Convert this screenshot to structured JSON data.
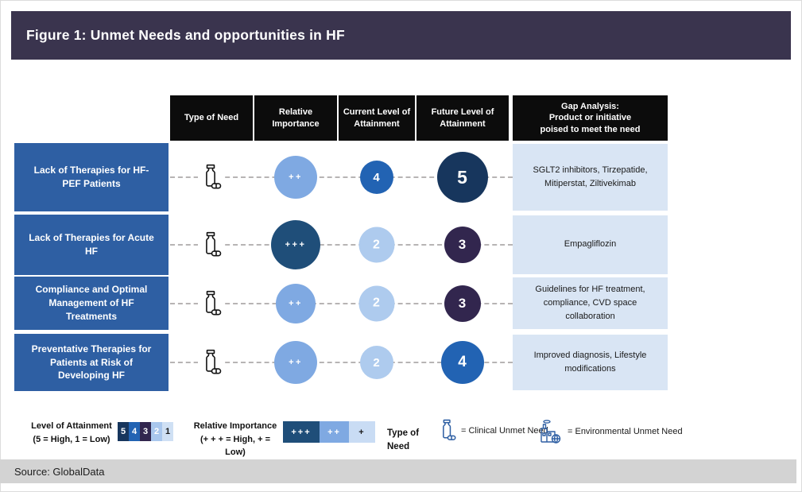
{
  "title_bar": {
    "text": "Figure 1: Unmet Needs and opportunities in HF",
    "bg": "#3a344e",
    "fg": "#ffffff"
  },
  "colors": {
    "header_bg": "#0c0c0c",
    "row_label_bg": "#2e5fa3",
    "gap_cell_bg": "#d9e5f4",
    "dashed_line": "#b7b4b4",
    "source_bar_bg": "#d3d3d3",
    "legend_icon_blue": "#2e5fa3"
  },
  "table": {
    "headers": {
      "type": "Type of Need",
      "importance": "Relative\nImportance",
      "current": "Current Level of\nAttainment",
      "future": "Future Level of\nAttainment",
      "gap": "Gap Analysis:\nProduct or initiative\npoised to meet the need"
    },
    "rows": [
      {
        "label": "Lack of Therapies for HF-PEF Patients",
        "need_type": "clinical",
        "importance": {
          "text": "++",
          "color": "#7fa9e2",
          "fg": "#ffffff",
          "size": 54
        },
        "current": {
          "text": "4",
          "color": "#2263b3",
          "fg": "#ffffff",
          "size": 42
        },
        "future": {
          "text": "5",
          "color": "#17365d",
          "fg": "#ffffff",
          "size": 64
        },
        "gap": "SGLT2 inhibitors, Tirzepatide, Mitiperstat, Ziltivekimab"
      },
      {
        "label": "Lack of Therapies for Acute HF",
        "need_type": "clinical",
        "importance": {
          "text": "+++",
          "color": "#1f4e79",
          "fg": "#ffffff",
          "size": 62
        },
        "current": {
          "text": "2",
          "color": "#aecbee",
          "fg": "#ffffff",
          "size": 45
        },
        "future": {
          "text": "3",
          "color": "#32264e",
          "fg": "#ffffff",
          "size": 46
        },
        "gap": "Empagliflozin"
      },
      {
        "label": "Compliance and Optimal Management of HF Treatments",
        "need_type": "clinical",
        "importance": {
          "text": "++",
          "color": "#7fa9e2",
          "fg": "#ffffff",
          "size": 50
        },
        "current": {
          "text": "2",
          "color": "#aecbee",
          "fg": "#ffffff",
          "size": 45
        },
        "future": {
          "text": "3",
          "color": "#32264e",
          "fg": "#ffffff",
          "size": 46
        },
        "gap": "Guidelines for HF treatment, compliance, CVD space collaboration"
      },
      {
        "label": "Preventative Therapies for Patients at Risk of Developing HF",
        "need_type": "clinical",
        "importance": {
          "text": "++",
          "color": "#7fa9e2",
          "fg": "#ffffff",
          "size": 54
        },
        "current": {
          "text": "2",
          "color": "#aecbee",
          "fg": "#ffffff",
          "size": 42
        },
        "future": {
          "text": "4",
          "color": "#2263b3",
          "fg": "#ffffff",
          "size": 54
        },
        "gap": "Improved diagnosis, Lifestyle modifications"
      }
    ]
  },
  "legend": {
    "attainment": {
      "label": "Level of Attainment\n(5 = High, 1 = Low)",
      "swatches": [
        {
          "text": "5",
          "bg": "#17365d",
          "fg": "#ffffff"
        },
        {
          "text": "4",
          "bg": "#2263b3",
          "fg": "#ffffff"
        },
        {
          "text": "3",
          "bg": "#32264e",
          "fg": "#ffffff"
        },
        {
          "text": "2",
          "bg": "#a9c7ed",
          "fg": "#ffffff"
        },
        {
          "text": "1",
          "bg": "#cfe0f4",
          "fg": "#1a1a1a"
        }
      ]
    },
    "importance": {
      "label": "Relative Importance\n(+ + + = High, + = Low)",
      "swatches": [
        {
          "text": "+++",
          "bg": "#1f4e79",
          "fg": "#ffffff"
        },
        {
          "text": "++",
          "bg": "#7fa9e2",
          "fg": "#ffffff"
        },
        {
          "text": "+",
          "bg": "#c9dcf4",
          "fg": "#1a1a1a"
        }
      ]
    },
    "need_type": {
      "label": "Type of Need",
      "clinical": "= Clinical Unmet Need",
      "environmental": "= Environmental Unmet Need"
    }
  },
  "source": {
    "text": "Source: GlobalData",
    "bg": "#d3d3d3"
  },
  "chart_data": {
    "type": "table",
    "title": "Figure 1: Unmet Needs and opportunities in HF",
    "columns": [
      "Type of Need",
      "Relative Importance",
      "Current Level of Attainment",
      "Future Level of Attainment",
      "Gap Analysis: Product or initiative poised to meet the need"
    ],
    "rows": [
      {
        "need": "Lack of Therapies for HF-PEF Patients",
        "type_of_need": "Clinical Unmet Need",
        "relative_importance": "++",
        "current_level": 4,
        "future_level": 5,
        "gap_analysis": "SGLT2 inhibitors, Tirzepatide, Mitiperstat, Ziltivekimab"
      },
      {
        "need": "Lack of Therapies for Acute HF",
        "type_of_need": "Clinical Unmet Need",
        "relative_importance": "+++",
        "current_level": 2,
        "future_level": 3,
        "gap_analysis": "Empagliflozin"
      },
      {
        "need": "Compliance and Optimal Management of HF Treatments",
        "type_of_need": "Clinical Unmet Need",
        "relative_importance": "++",
        "current_level": 2,
        "future_level": 3,
        "gap_analysis": "Guidelines for HF treatment, compliance, CVD space collaboration"
      },
      {
        "need": "Preventative Therapies for Patients at Risk of Developing HF",
        "type_of_need": "Clinical Unmet Need",
        "relative_importance": "++",
        "current_level": 2,
        "future_level": 4,
        "gap_analysis": "Improved diagnosis, Lifestyle modifications"
      }
    ],
    "scales": {
      "attainment": "5 = High, 1 = Low",
      "importance": "+++ = High, + = Low"
    },
    "source": "GlobalData"
  }
}
